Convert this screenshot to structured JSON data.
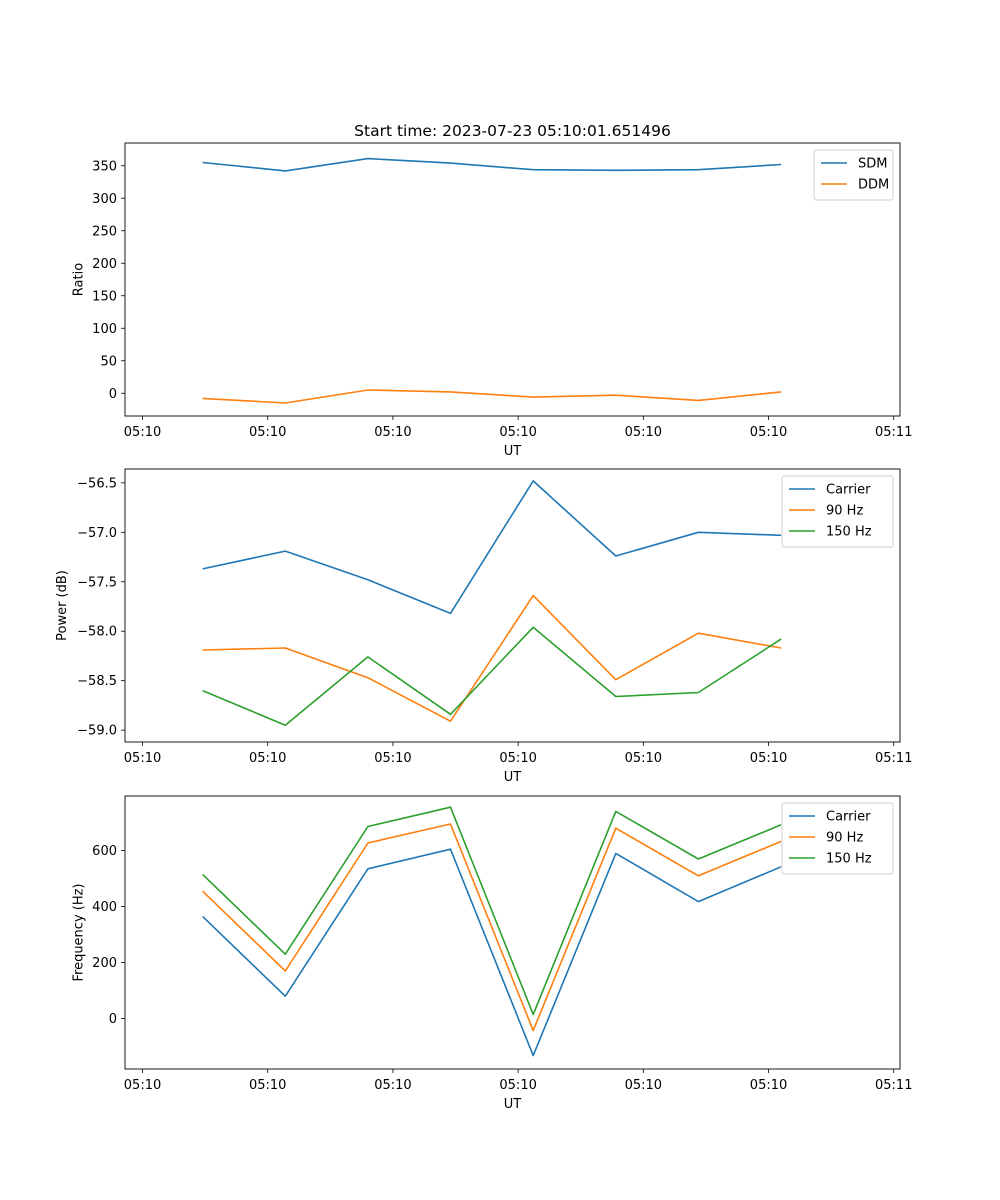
{
  "chart_data": [
    {
      "type": "line",
      "title": "Start time: 2023-07-23 05:10:01.651496",
      "xlabel": "UT",
      "ylabel": "Ratio",
      "xticks": [
        "05:10",
        "05:10",
        "05:10",
        "05:10",
        "05:10",
        "05:10",
        "05:11"
      ],
      "xtick_positions": [
        0,
        1,
        2,
        3,
        4,
        5,
        6
      ],
      "xlim": [
        -0.14,
        6.05
      ],
      "ylim": [
        -35,
        385
      ],
      "yticks": [
        0,
        50,
        100,
        150,
        200,
        250,
        300,
        350
      ],
      "ytick_labels": [
        "0",
        "50",
        "100",
        "150",
        "200",
        "250",
        "300",
        "350"
      ],
      "legend_loc": "upper right",
      "x": [
        0.48,
        1.14,
        1.8,
        2.46,
        3.12,
        3.78,
        4.44,
        5.1
      ],
      "series": [
        {
          "name": "SDM",
          "color": "#1f77b4",
          "values": [
            355,
            342,
            361,
            354,
            344,
            343,
            344,
            352
          ]
        },
        {
          "name": "DDM",
          "color": "#ff7f0e",
          "values": [
            -8,
            -15,
            5,
            2,
            -6,
            -3,
            -11,
            2
          ]
        }
      ]
    },
    {
      "type": "line",
      "title": "",
      "xlabel": "UT",
      "ylabel": "Power (dB)",
      "xticks": [
        "05:10",
        "05:10",
        "05:10",
        "05:10",
        "05:10",
        "05:10",
        "05:11"
      ],
      "xtick_positions": [
        0,
        1,
        2,
        3,
        4,
        5,
        6
      ],
      "xlim": [
        -0.14,
        6.05
      ],
      "ylim": [
        -59.12,
        -56.36
      ],
      "yticks": [
        -59.0,
        -58.5,
        -58.0,
        -57.5,
        -57.0,
        -56.5
      ],
      "ytick_labels": [
        "−59.0",
        "−58.5",
        "−58.0",
        "−57.5",
        "−57.0",
        "−56.5"
      ],
      "legend_loc": "upper right",
      "x": [
        0.48,
        1.14,
        1.8,
        2.46,
        3.12,
        3.78,
        4.44,
        5.1
      ],
      "series": [
        {
          "name": "Carrier",
          "color": "#1f77b4",
          "values": [
            -57.37,
            -57.19,
            -57.48,
            -57.82,
            -56.48,
            -57.24,
            -57.0,
            -57.03
          ]
        },
        {
          "name": "90 Hz",
          "color": "#ff7f0e",
          "values": [
            -58.19,
            -58.17,
            -58.47,
            -58.91,
            -57.64,
            -58.49,
            -58.02,
            -58.17
          ]
        },
        {
          "name": "150 Hz",
          "color": "#2ca02c",
          "values": [
            -58.6,
            -58.95,
            -58.26,
            -58.84,
            -57.96,
            -58.66,
            -58.62,
            -58.08
          ]
        }
      ]
    },
    {
      "type": "line",
      "title": "",
      "xlabel": "UT",
      "ylabel": "Frequency (Hz)",
      "xticks": [
        "05:10",
        "05:10",
        "05:10",
        "05:10",
        "05:10",
        "05:10",
        "05:11"
      ],
      "xtick_positions": [
        0,
        1,
        2,
        3,
        4,
        5,
        6
      ],
      "xlim": [
        -0.14,
        6.05
      ],
      "ylim": [
        -180,
        795
      ],
      "yticks": [
        0,
        200,
        400,
        600
      ],
      "ytick_labels": [
        "0",
        "200",
        "400",
        "600"
      ],
      "legend_loc": "upper right",
      "x": [
        0.48,
        1.14,
        1.8,
        2.46,
        3.12,
        3.78,
        4.44,
        5.1
      ],
      "series": [
        {
          "name": "Carrier",
          "color": "#1f77b4",
          "values": [
            365,
            80,
            535,
            605,
            -132,
            590,
            418,
            542
          ]
        },
        {
          "name": "90 Hz",
          "color": "#ff7f0e",
          "values": [
            455,
            170,
            627,
            695,
            -43,
            680,
            510,
            633
          ]
        },
        {
          "name": "150 Hz",
          "color": "#2ca02c",
          "values": [
            515,
            230,
            686,
            755,
            15,
            740,
            570,
            692
          ]
        }
      ]
    }
  ]
}
